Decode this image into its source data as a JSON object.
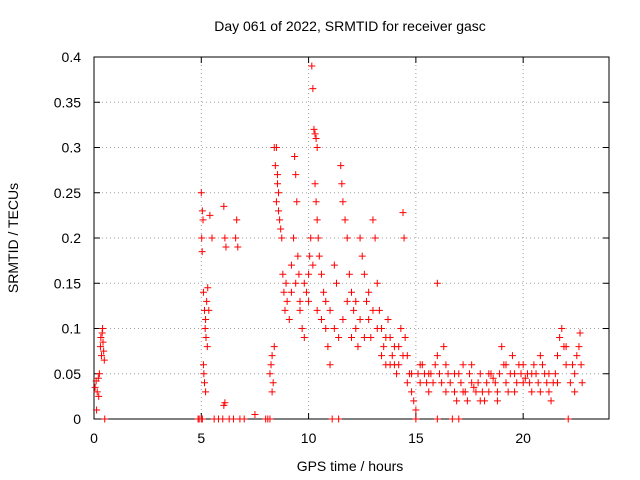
{
  "chart_data": {
    "type": "scatter",
    "title": "Day 061 of 2022, SRMTID for receiver gasc",
    "xlabel": "GPS time / hours",
    "ylabel": "SRMTID / TECUs",
    "xlim": [
      0,
      24
    ],
    "ylim": [
      0,
      0.4
    ],
    "xticks": [
      0,
      5,
      10,
      15,
      20
    ],
    "xtick_labels": [
      "0",
      "5",
      "10",
      "15",
      "20"
    ],
    "yticks": [
      0,
      0.05,
      0.1,
      0.15,
      0.2,
      0.25,
      0.3,
      0.35,
      0.4
    ],
    "ytick_labels": [
      "0",
      "0.05",
      "0.1",
      "0.15",
      "0.2",
      "0.25",
      "0.3",
      "0.35",
      "0.4"
    ],
    "grid": true,
    "marker": "plus",
    "color": "#ff0000",
    "series": [
      {
        "name": "SRMTID",
        "points": [
          [
            0.05,
            0.035
          ],
          [
            0.1,
            0.042
          ],
          [
            0.15,
            0.03
          ],
          [
            0.2,
            0.045
          ],
          [
            0.22,
            0.025
          ],
          [
            0.25,
            0.05
          ],
          [
            0.12,
            0.01
          ],
          [
            0.3,
            0.08
          ],
          [
            0.32,
            0.09
          ],
          [
            0.35,
            0.07
          ],
          [
            0.38,
            0.095
          ],
          [
            0.4,
            0.1
          ],
          [
            0.42,
            0.085
          ],
          [
            0.45,
            0.075
          ],
          [
            0.48,
            0.065
          ],
          [
            0.5,
            0.0
          ],
          [
            4.85,
            0.0
          ],
          [
            4.9,
            0.0
          ],
          [
            5.0,
            0.0
          ],
          [
            5.05,
            0.0
          ],
          [
            5.0,
            0.25
          ],
          [
            5.05,
            0.23
          ],
          [
            5.08,
            0.22
          ],
          [
            5.02,
            0.2
          ],
          [
            5.04,
            0.185
          ],
          [
            5.1,
            0.14
          ],
          [
            5.15,
            0.12
          ],
          [
            5.2,
            0.11
          ],
          [
            5.25,
            0.13
          ],
          [
            5.3,
            0.145
          ],
          [
            5.35,
            0.12
          ],
          [
            5.18,
            0.1
          ],
          [
            5.22,
            0.09
          ],
          [
            5.28,
            0.08
          ],
          [
            5.1,
            0.06
          ],
          [
            5.15,
            0.04
          ],
          [
            5.2,
            0.03
          ],
          [
            5.12,
            0.05
          ],
          [
            5.4,
            0.225
          ],
          [
            5.5,
            0.2
          ],
          [
            5.6,
            0.0
          ],
          [
            5.8,
            0.0
          ],
          [
            6.0,
            0.0
          ],
          [
            6.05,
            0.015
          ],
          [
            6.1,
            0.018
          ],
          [
            6.05,
            0.235
          ],
          [
            6.1,
            0.2
          ],
          [
            6.15,
            0.19
          ],
          [
            6.3,
            0.0
          ],
          [
            6.5,
            0.0
          ],
          [
            6.6,
            0.2
          ],
          [
            6.65,
            0.22
          ],
          [
            6.7,
            0.19
          ],
          [
            6.8,
            0.0
          ],
          [
            7.0,
            0.0
          ],
          [
            7.5,
            0.005
          ],
          [
            8.0,
            0.0
          ],
          [
            8.1,
            0.0
          ],
          [
            8.2,
            0.0
          ],
          [
            8.2,
            0.05
          ],
          [
            8.25,
            0.06
          ],
          [
            8.3,
            0.07
          ],
          [
            8.35,
            0.04
          ],
          [
            8.4,
            0.08
          ],
          [
            8.3,
            0.03
          ],
          [
            8.4,
            0.3
          ],
          [
            8.45,
            0.28
          ],
          [
            8.5,
            0.3
          ],
          [
            8.55,
            0.27
          ],
          [
            8.6,
            0.25
          ],
          [
            8.5,
            0.24
          ],
          [
            8.6,
            0.23
          ],
          [
            8.65,
            0.22
          ],
          [
            8.7,
            0.21
          ],
          [
            8.75,
            0.2
          ],
          [
            8.55,
            0.26
          ],
          [
            8.8,
            0.16
          ],
          [
            8.85,
            0.14
          ],
          [
            8.9,
            0.12
          ],
          [
            8.95,
            0.15
          ],
          [
            9.0,
            0.13
          ],
          [
            9.1,
            0.11
          ],
          [
            9.2,
            0.14
          ],
          [
            9.3,
            0.2
          ],
          [
            9.35,
            0.29
          ],
          [
            9.4,
            0.27
          ],
          [
            9.45,
            0.24
          ],
          [
            9.5,
            0.18
          ],
          [
            9.55,
            0.16
          ],
          [
            9.6,
            0.12
          ],
          [
            9.7,
            0.1
          ],
          [
            9.8,
            0.09
          ],
          [
            9.9,
            0.14
          ],
          [
            10.0,
            0.16
          ],
          [
            10.05,
            0.18
          ],
          [
            10.1,
            0.2
          ],
          [
            10.15,
            0.39
          ],
          [
            10.2,
            0.365
          ],
          [
            10.25,
            0.32
          ],
          [
            10.3,
            0.315
          ],
          [
            10.35,
            0.31
          ],
          [
            10.4,
            0.3
          ],
          [
            10.3,
            0.26
          ],
          [
            10.35,
            0.24
          ],
          [
            10.4,
            0.22
          ],
          [
            10.45,
            0.2
          ],
          [
            10.5,
            0.18
          ],
          [
            10.6,
            0.16
          ],
          [
            10.7,
            0.14
          ],
          [
            10.8,
            0.1
          ],
          [
            10.9,
            0.08
          ],
          [
            11.0,
            0.06
          ],
          [
            11.1,
            0.0
          ],
          [
            11.2,
            0.17
          ],
          [
            11.3,
            0.15
          ],
          [
            11.4,
            0.0
          ],
          [
            11.5,
            0.28
          ],
          [
            11.55,
            0.26
          ],
          [
            11.6,
            0.24
          ],
          [
            11.7,
            0.22
          ],
          [
            11.8,
            0.2
          ],
          [
            11.9,
            0.16
          ],
          [
            12.0,
            0.14
          ],
          [
            12.1,
            0.12
          ],
          [
            12.2,
            0.1
          ],
          [
            12.3,
            0.08
          ],
          [
            12.4,
            0.2
          ],
          [
            12.5,
            0.18
          ],
          [
            12.6,
            0.16
          ],
          [
            12.7,
            0.13
          ],
          [
            12.8,
            0.11
          ],
          [
            12.9,
            0.09
          ],
          [
            13.0,
            0.22
          ],
          [
            13.1,
            0.2
          ],
          [
            13.2,
            0.15
          ],
          [
            13.3,
            0.12
          ],
          [
            13.4,
            0.1
          ],
          [
            13.5,
            0.08
          ],
          [
            13.6,
            0.06
          ],
          [
            13.7,
            0.11
          ],
          [
            13.8,
            0.09
          ],
          [
            13.9,
            0.07
          ],
          [
            14.0,
            0.06
          ],
          [
            14.1,
            0.05
          ],
          [
            14.2,
            0.08
          ],
          [
            14.3,
            0.1
          ],
          [
            14.4,
            0.228
          ],
          [
            14.45,
            0.2
          ],
          [
            14.5,
            0.09
          ],
          [
            14.6,
            0.07
          ],
          [
            14.7,
            0.05
          ],
          [
            14.8,
            0.03
          ],
          [
            14.9,
            0.02
          ],
          [
            15.0,
            0.01
          ],
          [
            15.1,
            0.05
          ],
          [
            15.2,
            0.04
          ],
          [
            15.3,
            0.06
          ],
          [
            15.4,
            0.05
          ],
          [
            15.5,
            0.04
          ],
          [
            15.6,
            0.03
          ],
          [
            15.7,
            0.05
          ],
          [
            15.8,
            0.04
          ],
          [
            15.9,
            0.06
          ],
          [
            16.0,
            0.15
          ],
          [
            16.1,
            0.05
          ],
          [
            16.2,
            0.04
          ],
          [
            16.3,
            0.08
          ],
          [
            16.4,
            0.06
          ],
          [
            16.5,
            0.05
          ],
          [
            16.6,
            0.04
          ],
          [
            16.7,
            0.0
          ],
          [
            16.8,
            0.03
          ],
          [
            16.9,
            0.02
          ],
          [
            17.0,
            0.05
          ],
          [
            17.1,
            0.04
          ],
          [
            17.2,
            0.06
          ],
          [
            17.3,
            0.03
          ],
          [
            17.4,
            0.02
          ],
          [
            17.5,
            0.05
          ],
          [
            17.6,
            0.04
          ],
          [
            17.7,
            0.035
          ],
          [
            17.8,
            0.03
          ],
          [
            17.9,
            0.04
          ],
          [
            18.0,
            0.05
          ],
          [
            18.1,
            0.03
          ],
          [
            18.2,
            0.02
          ],
          [
            18.3,
            0.04
          ],
          [
            18.4,
            0.03
          ],
          [
            18.5,
            0.05
          ],
          [
            18.6,
            0.045
          ],
          [
            18.7,
            0.04
          ],
          [
            18.8,
            0.03
          ],
          [
            18.9,
            0.05
          ],
          [
            19.0,
            0.08
          ],
          [
            19.1,
            0.06
          ],
          [
            19.2,
            0.04
          ],
          [
            19.3,
            0.03
          ],
          [
            19.4,
            0.05
          ],
          [
            19.5,
            0.07
          ],
          [
            19.6,
            0.05
          ],
          [
            19.7,
            0.04
          ],
          [
            19.8,
            0.06
          ],
          [
            19.9,
            0.05
          ],
          [
            20.0,
            0.04
          ],
          [
            20.1,
            0.045
          ],
          [
            20.2,
            0.05
          ],
          [
            20.3,
            0.04
          ],
          [
            20.4,
            0.03
          ],
          [
            20.5,
            0.06
          ],
          [
            20.6,
            0.05
          ],
          [
            20.7,
            0.04
          ],
          [
            20.8,
            0.07
          ],
          [
            20.9,
            0.06
          ],
          [
            21.0,
            0.05
          ],
          [
            21.1,
            0.04
          ],
          [
            21.2,
            0.03
          ],
          [
            21.3,
            0.02
          ],
          [
            21.4,
            0.04
          ],
          [
            21.5,
            0.05
          ],
          [
            21.6,
            0.07
          ],
          [
            21.7,
            0.09
          ],
          [
            21.8,
            0.1
          ],
          [
            21.9,
            0.08
          ],
          [
            22.0,
            0.06
          ],
          [
            22.1,
            0.0
          ],
          [
            22.2,
            0.04
          ],
          [
            22.3,
            0.06
          ],
          [
            22.4,
            0.05
          ],
          [
            22.5,
            0.07
          ],
          [
            22.6,
            0.08
          ],
          [
            22.65,
            0.095
          ],
          [
            22.7,
            0.06
          ],
          [
            22.75,
            0.04
          ],
          [
            9.2,
            0.17
          ],
          [
            9.4,
            0.15
          ],
          [
            9.6,
            0.13
          ],
          [
            9.8,
            0.15
          ],
          [
            10.0,
            0.13
          ],
          [
            10.2,
            0.17
          ],
          [
            10.4,
            0.12
          ],
          [
            10.6,
            0.11
          ],
          [
            10.8,
            0.13
          ],
          [
            11.0,
            0.12
          ],
          [
            11.2,
            0.1
          ],
          [
            11.4,
            0.09
          ],
          [
            11.6,
            0.11
          ],
          [
            11.8,
            0.13
          ],
          [
            12.0,
            0.09
          ],
          [
            12.2,
            0.13
          ],
          [
            12.4,
            0.11
          ],
          [
            12.6,
            0.09
          ],
          [
            12.8,
            0.14
          ],
          [
            13.0,
            0.12
          ],
          [
            13.2,
            0.1
          ],
          [
            13.4,
            0.07
          ],
          [
            13.6,
            0.09
          ],
          [
            13.8,
            0.06
          ],
          [
            14.0,
            0.08
          ],
          [
            14.2,
            0.06
          ],
          [
            14.4,
            0.07
          ],
          [
            14.6,
            0.04
          ],
          [
            14.8,
            0.05
          ],
          [
            15.2,
            0.06
          ],
          [
            15.6,
            0.05
          ],
          [
            16.0,
            0.07
          ],
          [
            16.4,
            0.03
          ],
          [
            16.8,
            0.05
          ],
          [
            17.2,
            0.03
          ],
          [
            17.6,
            0.06
          ],
          [
            18.0,
            0.02
          ],
          [
            18.4,
            0.05
          ],
          [
            18.8,
            0.02
          ],
          [
            19.2,
            0.06
          ],
          [
            19.6,
            0.03
          ],
          [
            20.0,
            0.06
          ],
          [
            20.4,
            0.05
          ],
          [
            20.8,
            0.03
          ],
          [
            21.2,
            0.05
          ],
          [
            21.6,
            0.04
          ],
          [
            22.0,
            0.08
          ],
          [
            22.4,
            0.03
          ],
          [
            15.0,
            0.0
          ],
          [
            16.0,
            0.0
          ],
          [
            17.0,
            0.0
          ]
        ]
      }
    ]
  }
}
